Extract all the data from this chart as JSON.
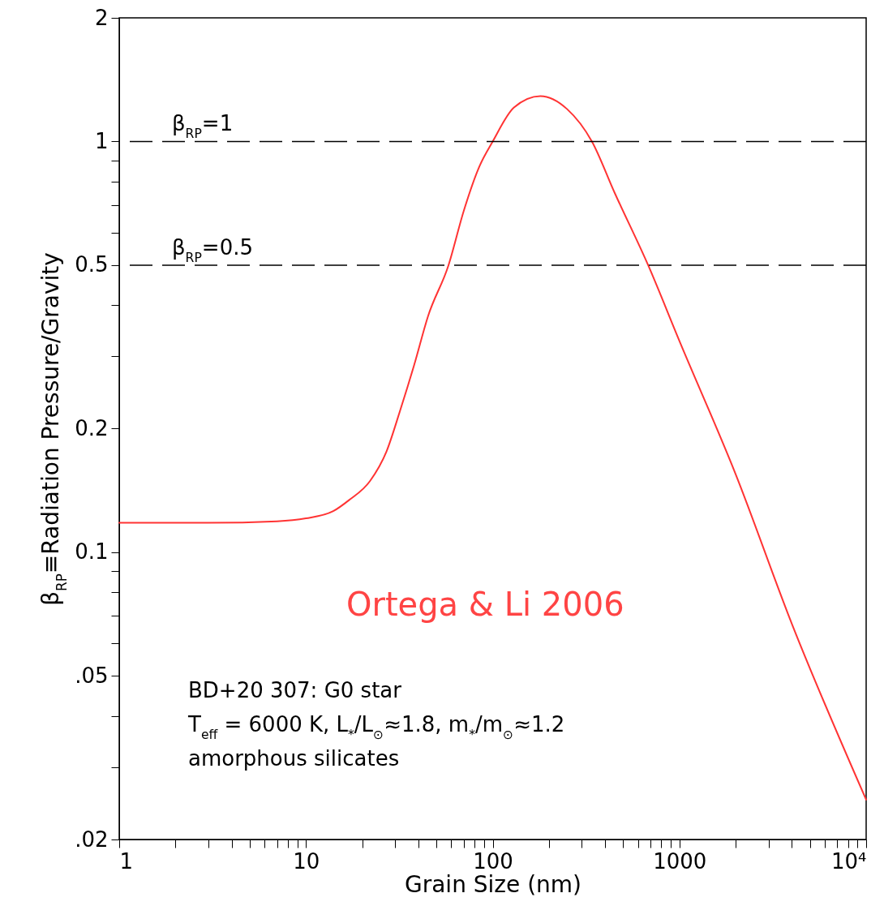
{
  "chart_data": {
    "type": "line",
    "xlabel": "Grain Size (nm)",
    "ylabel": "β$_{RP}$≡Radiation Pressure/Gravity",
    "log": "xy",
    "grid": false,
    "x": [
      1,
      3,
      7,
      10,
      14,
      17,
      22,
      27,
      32,
      38,
      45,
      58,
      70,
      85,
      100,
      130,
      180,
      250,
      340,
      450,
      680,
      1000,
      2000,
      4000,
      10000
    ],
    "series": [
      {
        "color": "#ff3333",
        "line_style": "solid",
        "values": [
          0.118,
          0.118,
          0.119,
          0.121,
          0.126,
          0.134,
          0.149,
          0.176,
          0.222,
          0.286,
          0.375,
          0.5,
          0.678,
          0.871,
          1.0,
          1.21,
          1.29,
          1.2,
          1.0,
          0.75,
          0.5,
          0.327,
          0.155,
          0.067,
          0.025
        ]
      }
    ],
    "xlim": [
      1,
      10000
    ],
    "ylim": [
      0.02,
      2
    ],
    "xticks": [
      1,
      {
        "value": 2,
        "label": null
      },
      {
        "value": 3,
        "label": null
      },
      {
        "value": 4,
        "label": null
      },
      {
        "value": 5,
        "label": null
      },
      {
        "value": 6,
        "label": null
      },
      {
        "value": 7,
        "label": null
      },
      {
        "value": 8,
        "label": null
      },
      {
        "value": 9,
        "label": null
      },
      10,
      {
        "value": 20,
        "label": null
      },
      {
        "value": 30,
        "label": null
      },
      {
        "value": 40,
        "label": null
      },
      {
        "value": 50,
        "label": null
      },
      {
        "value": 60,
        "label": null
      },
      {
        "value": 70,
        "label": null
      },
      {
        "value": 80,
        "label": null
      },
      {
        "value": 90,
        "label": null
      },
      100,
      {
        "value": 200,
        "label": null
      },
      {
        "value": 300,
        "label": null
      },
      {
        "value": 400,
        "label": null
      },
      {
        "value": 500,
        "label": null
      },
      {
        "value": 600,
        "label": null
      },
      {
        "value": 700,
        "label": null
      },
      {
        "value": 800,
        "label": null
      },
      {
        "value": 900,
        "label": null
      },
      1000,
      {
        "value": 2000,
        "label": null
      },
      {
        "value": 3000,
        "label": null
      },
      {
        "value": 4000,
        "label": null
      },
      {
        "value": 5000,
        "label": null
      },
      {
        "value": 6000,
        "label": null
      },
      {
        "value": 7000,
        "label": null
      },
      {
        "value": 8000,
        "label": null
      },
      {
        "value": 9000,
        "label": null
      },
      {
        "value": 10000,
        "label": "10⁴"
      }
    ],
    "yticks": [
      {
        "value": 0.02,
        "label": ".02"
      },
      {
        "value": 0.03,
        "label": null
      },
      {
        "value": 0.04,
        "label": null
      },
      {
        "value": 0.05,
        "label": ".05"
      },
      {
        "value": 0.06,
        "label": null
      },
      {
        "value": 0.07,
        "label": null
      },
      {
        "value": 0.08,
        "label": null
      },
      {
        "value": 0.09,
        "label": null
      },
      0.1,
      0.2,
      {
        "value": 0.3,
        "label": null
      },
      {
        "value": 0.4,
        "label": null
      },
      0.5,
      {
        "value": 0.6,
        "label": null
      },
      {
        "value": 0.7,
        "label": null
      },
      {
        "value": 0.8,
        "label": null
      },
      {
        "value": 0.9,
        "label": null
      },
      1,
      2
    ],
    "ref_lines": [
      {
        "axis": "y",
        "value": 1,
        "label": "β$_{RP}$=1",
        "color": "#000000",
        "line_style": "dashed"
      },
      {
        "axis": "y",
        "value": 0.5,
        "label": "β$_{RP}$=0.5",
        "color": "#000000",
        "line_style": "dashed"
      }
    ],
    "annotations": [
      "Ortega & Li 2006",
      "BD+20 307: G0 star",
      "T$_{eff}$ = 6000 K, L$_{*}$/L$_{⊙}$≈1.8, m$_{*}$/m$_{⊙}$≈1.2",
      "amorphous silicates"
    ]
  }
}
